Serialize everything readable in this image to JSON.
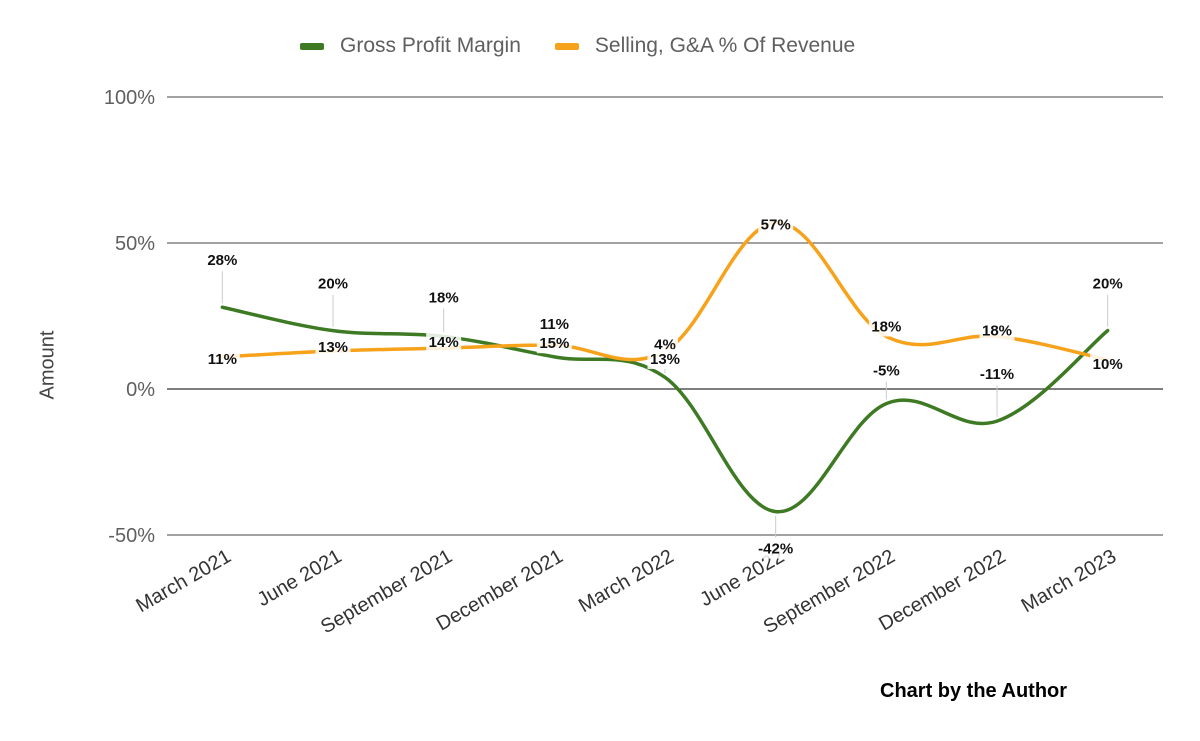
{
  "chart_data": {
    "type": "line",
    "title": "",
    "xlabel": "",
    "ylabel": "Amount",
    "ylim": [
      -50,
      100
    ],
    "yticks": [
      {
        "value": 100,
        "label": "100%"
      },
      {
        "value": 50,
        "label": "50%"
      },
      {
        "value": 0,
        "label": "0%"
      },
      {
        "value": -50,
        "label": "-50%"
      }
    ],
    "categories": [
      "March 2021",
      "June 2021",
      "September 2021",
      "December 2021",
      "March 2022",
      "June 2022",
      "September 2022",
      "December 2022",
      "March 2023"
    ],
    "series": [
      {
        "name": "Gross Profit Margin",
        "color": "#3d7a23",
        "values": [
          28,
          20,
          18,
          11,
          4,
          -42,
          -5,
          -11,
          20
        ],
        "labels": [
          "28%",
          "20%",
          "18%",
          "11%",
          "4%",
          "-42%",
          "-5%",
          "-11%",
          "20%"
        ]
      },
      {
        "name": "Selling, G&A % Of Revenue",
        "color": "#f7a21b",
        "values": [
          11,
          13,
          14,
          15,
          13,
          57,
          18,
          18,
          10
        ],
        "labels": [
          "11%",
          "13%",
          "14%",
          "15%",
          "13%",
          "57%",
          "18%",
          "18%",
          "10%"
        ]
      }
    ],
    "legend_position": "top",
    "gridlines": true
  },
  "credit": "Chart by the Author"
}
